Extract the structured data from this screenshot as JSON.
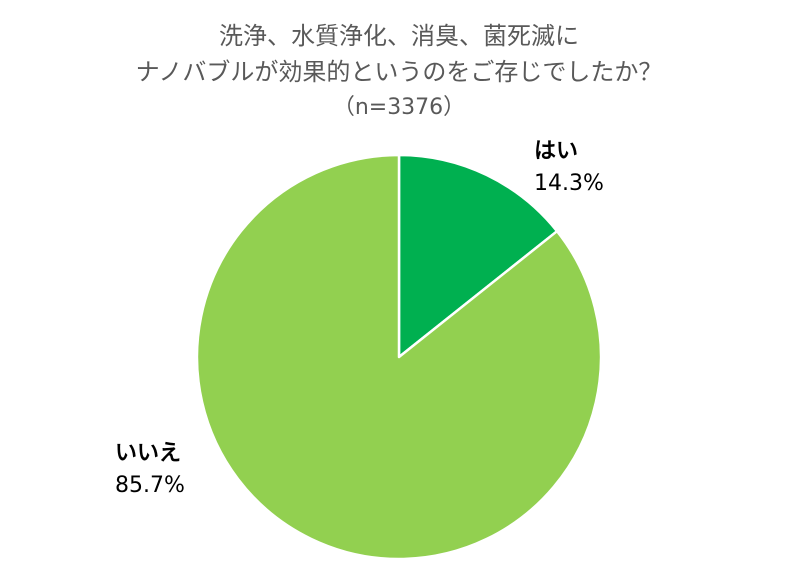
{
  "chart_data": {
    "type": "pie",
    "title": "洗浄、水質浄化、消臭、菌死滅にナノバブルが効果的というのをご存じでしたか？",
    "subtitle": "（n=3376）",
    "categories": [
      "はい",
      "いいえ"
    ],
    "values": [
      14.3,
      85.7
    ],
    "unit": "%",
    "colors": [
      "#00B050",
      "#92D050"
    ],
    "start_angle": "12 o'clock, clockwise",
    "legend": "none (data labels beside slices)"
  },
  "title": {
    "line1": "洗浄、水質浄化、消臭、菌死滅に",
    "line2": "ナノバブルが効果的というのをご存じでしたか？",
    "line3": "（n=3376）"
  },
  "labels": {
    "yes": {
      "name": "はい",
      "value": "14.3%"
    },
    "no": {
      "name": "いいえ",
      "value": "85.7%"
    }
  }
}
